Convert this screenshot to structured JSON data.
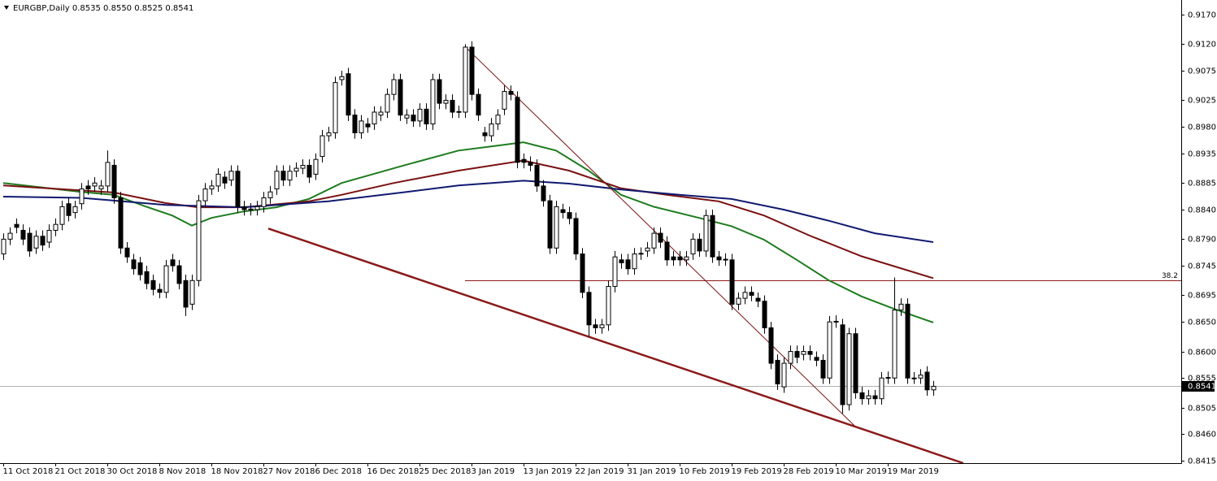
{
  "chart_data": {
    "type": "candlestick",
    "title": "EURGBP,Daily  0.8535 0.8550 0.8525 0.8541",
    "open": [
      0.8765,
      0.879,
      0.8815,
      0.8805,
      0.88,
      0.8775,
      0.8795,
      0.8785,
      0.8805,
      0.8815,
      0.885,
      0.8835,
      0.885,
      0.888,
      0.888,
      0.8875,
      0.888,
      0.8915,
      0.886,
      0.8775,
      0.8755,
      0.875,
      0.8735,
      0.872,
      0.8705,
      0.87,
      0.8755,
      0.8745,
      0.872,
      0.868,
      0.872,
      0.8855,
      0.8875,
      0.888,
      0.8895,
      0.889,
      0.8905,
      0.8845,
      0.884,
      0.884,
      0.8845,
      0.886,
      0.8875,
      0.8905,
      0.889,
      0.8905,
      0.891,
      0.8915,
      0.89,
      0.893,
      0.8965,
      0.897,
      0.906,
      0.907,
      0.9,
      0.897,
      0.8985,
      0.8985,
      0.9,
      0.9005,
      0.9035,
      0.906,
      0.8995,
      0.9,
      0.899,
      0.901,
      0.8985,
      0.906,
      0.902,
      0.9025,
      0.9005,
      0.9005,
      0.9115,
      0.9035,
      0.897,
      0.8965,
      0.8985,
      0.901,
      0.904,
      0.903,
      0.8925,
      0.892,
      0.8915,
      0.888,
      0.8855,
      0.8775,
      0.884,
      0.8835,
      0.8825,
      0.8765,
      0.87,
      0.8645,
      0.864,
      0.8645,
      0.871,
      0.8755,
      0.8755,
      0.874,
      0.8765,
      0.877,
      0.8775,
      0.88,
      0.8785,
      0.876,
      0.876,
      0.8755,
      0.8765,
      0.879,
      0.877,
      0.883,
      0.876,
      0.8755,
      0.8755,
      0.868,
      0.869,
      0.87,
      0.869,
      0.8685,
      0.864,
      0.8585,
      0.854,
      0.858,
      0.86,
      0.8595,
      0.86,
      0.859,
      0.8585,
      0.8555,
      0.865,
      0.8645,
      0.851,
      0.863,
      0.853,
      0.852,
      0.8525,
      0.852,
      0.8555,
      0.8555,
      0.867,
      0.868,
      0.8555,
      0.8555,
      0.8565,
      0.8535
    ],
    "high": [
      0.88,
      0.881,
      0.8825,
      0.8815,
      0.881,
      0.8805,
      0.8805,
      0.8815,
      0.8825,
      0.8855,
      0.886,
      0.8855,
      0.8885,
      0.889,
      0.8895,
      0.889,
      0.894,
      0.8925,
      0.887,
      0.8785,
      0.8765,
      0.876,
      0.8745,
      0.873,
      0.8715,
      0.8755,
      0.8765,
      0.8755,
      0.873,
      0.873,
      0.8865,
      0.8885,
      0.889,
      0.891,
      0.8905,
      0.8915,
      0.8915,
      0.8855,
      0.8851,
      0.8855,
      0.887,
      0.888,
      0.8915,
      0.8915,
      0.8915,
      0.892,
      0.8925,
      0.8925,
      0.8935,
      0.8975,
      0.898,
      0.9065,
      0.9075,
      0.908,
      0.901,
      0.9,
      0.8995,
      0.9015,
      0.9015,
      0.9045,
      0.907,
      0.907,
      0.901,
      0.901,
      0.902,
      0.902,
      0.907,
      0.907,
      0.9035,
      0.9035,
      0.9016,
      0.912,
      0.9125,
      0.9045,
      0.898,
      0.8995,
      0.901,
      0.905,
      0.905,
      0.904,
      0.8935,
      0.893,
      0.8925,
      0.889,
      0.8865,
      0.8855,
      0.885,
      0.8845,
      0.8835,
      0.8775,
      0.871,
      0.8655,
      0.8655,
      0.872,
      0.877,
      0.8765,
      0.8765,
      0.8775,
      0.8776,
      0.8785,
      0.881,
      0.881,
      0.8795,
      0.877,
      0.877,
      0.877,
      0.88,
      0.88,
      0.884,
      0.884,
      0.877,
      0.8766,
      0.8765,
      0.87,
      0.871,
      0.871,
      0.87,
      0.8695,
      0.865,
      0.8595,
      0.859,
      0.861,
      0.861,
      0.861,
      0.861,
      0.86,
      0.8595,
      0.866,
      0.8661,
      0.8655,
      0.864,
      0.864,
      0.854,
      0.8535,
      0.8535,
      0.8565,
      0.8566,
      0.8725,
      0.869,
      0.869,
      0.8565,
      0.857,
      0.8575,
      0.855
    ],
    "low": [
      0.8755,
      0.878,
      0.88,
      0.878,
      0.876,
      0.8765,
      0.877,
      0.8775,
      0.8795,
      0.8805,
      0.882,
      0.8825,
      0.884,
      0.8865,
      0.887,
      0.8865,
      0.887,
      0.885,
      0.8765,
      0.875,
      0.873,
      0.872,
      0.8705,
      0.8695,
      0.869,
      0.869,
      0.8735,
      0.8705,
      0.866,
      0.867,
      0.871,
      0.8845,
      0.8865,
      0.887,
      0.8875,
      0.888,
      0.8835,
      0.883,
      0.883,
      0.883,
      0.8835,
      0.885,
      0.8865,
      0.888,
      0.888,
      0.8895,
      0.89,
      0.8885,
      0.889,
      0.892,
      0.8955,
      0.896,
      0.905,
      0.899,
      0.896,
      0.896,
      0.897,
      0.8975,
      0.899,
      0.8995,
      0.9025,
      0.899,
      0.8985,
      0.898,
      0.898,
      0.8975,
      0.8975,
      0.901,
      0.901,
      0.8995,
      0.8995,
      0.8995,
      0.9025,
      0.899,
      0.8955,
      0.8955,
      0.8975,
      0.9,
      0.9025,
      0.891,
      0.891,
      0.8905,
      0.887,
      0.8845,
      0.8765,
      0.8765,
      0.8825,
      0.8815,
      0.8755,
      0.869,
      0.8625,
      0.863,
      0.863,
      0.8635,
      0.87,
      0.874,
      0.873,
      0.873,
      0.8755,
      0.876,
      0.8765,
      0.8775,
      0.8745,
      0.8745,
      0.8745,
      0.8745,
      0.8755,
      0.876,
      0.876,
      0.875,
      0.8745,
      0.8745,
      0.867,
      0.867,
      0.868,
      0.8685,
      0.8675,
      0.863,
      0.857,
      0.8535,
      0.853,
      0.857,
      0.858,
      0.8585,
      0.8585,
      0.8575,
      0.8545,
      0.8545,
      0.864,
      0.8495,
      0.85,
      0.852,
      0.851,
      0.851,
      0.851,
      0.851,
      0.8545,
      0.8545,
      0.866,
      0.8545,
      0.8545,
      0.8545,
      0.8525,
      0.8525
    ],
    "close": [
      0.879,
      0.88,
      0.881,
      0.879,
      0.877,
      0.8795,
      0.878,
      0.8805,
      0.8815,
      0.8845,
      0.883,
      0.8845,
      0.8875,
      0.8875,
      0.8885,
      0.888,
      0.892,
      0.886,
      0.8775,
      0.876,
      0.874,
      0.873,
      0.8715,
      0.8705,
      0.87,
      0.8745,
      0.8745,
      0.8715,
      0.8675,
      0.872,
      0.8855,
      0.8875,
      0.888,
      0.89,
      0.8885,
      0.8905,
      0.8845,
      0.884,
      0.8841,
      0.8845,
      0.886,
      0.887,
      0.8905,
      0.889,
      0.8905,
      0.891,
      0.8915,
      0.8895,
      0.8925,
      0.8965,
      0.897,
      0.9055,
      0.9065,
      0.9,
      0.897,
      0.899,
      0.898,
      0.9005,
      0.9005,
      0.9035,
      0.906,
      0.9,
      0.9,
      0.899,
      0.901,
      0.8985,
      0.906,
      0.902,
      0.9025,
      0.9005,
      0.9006,
      0.9115,
      0.9035,
      0.9,
      0.8965,
      0.8985,
      0.9,
      0.904,
      0.9035,
      0.892,
      0.892,
      0.8915,
      0.888,
      0.8855,
      0.8775,
      0.8845,
      0.8835,
      0.8825,
      0.8765,
      0.87,
      0.8645,
      0.864,
      0.8645,
      0.871,
      0.876,
      0.875,
      0.874,
      0.8765,
      0.8766,
      0.8775,
      0.88,
      0.8785,
      0.8755,
      0.8755,
      0.8755,
      0.876,
      0.879,
      0.877,
      0.883,
      0.876,
      0.8755,
      0.8756,
      0.868,
      0.869,
      0.87,
      0.8695,
      0.8685,
      0.864,
      0.858,
      0.8545,
      0.858,
      0.86,
      0.859,
      0.86,
      0.8595,
      0.8585,
      0.8555,
      0.865,
      0.8651,
      0.851,
      0.863,
      0.853,
      0.852,
      0.8525,
      0.852,
      0.8555,
      0.8556,
      0.867,
      0.868,
      0.8555,
      0.8555,
      0.856,
      0.8535,
      0.8541
    ],
    "up_color": "#ffffff",
    "down_color": "#000000",
    "series": [
      {
        "color": "#1e7b1e",
        "x": [
          0,
          12,
          17,
          22,
          26,
          29,
          32,
          37,
          42,
          47,
          52,
          61,
          70,
          75,
          80,
          85,
          90,
          95,
          100,
          107,
          112,
          117,
          122,
          127,
          132,
          137,
          143
        ],
        "values": [
          0.8885,
          0.887,
          0.8865,
          0.8845,
          0.883,
          0.8813,
          0.8826,
          0.8837,
          0.8844,
          0.8858,
          0.8885,
          0.8913,
          0.894,
          0.8947,
          0.8954,
          0.894,
          0.8906,
          0.8865,
          0.8845,
          0.8826,
          0.8812,
          0.8789,
          0.8755,
          0.872,
          0.8693,
          0.8672,
          0.8649
        ]
      },
      {
        "color": "#7a1010",
        "x": [
          0,
          17,
          25,
          30,
          37,
          47,
          52,
          60,
          70,
          80,
          87,
          95,
          102,
          110,
          117,
          124,
          132,
          143
        ],
        "values": [
          0.8881,
          0.8869,
          0.8851,
          0.8844,
          0.8844,
          0.8854,
          0.8865,
          0.8885,
          0.8906,
          0.8923,
          0.8906,
          0.8876,
          0.8865,
          0.8854,
          0.883,
          0.8796,
          0.8761,
          0.8724
        ]
      },
      {
        "color": "#101a70",
        "x": [
          0,
          12,
          25,
          37,
          50,
          62,
          70,
          80,
          87,
          95,
          104,
          112,
          120,
          127,
          134,
          143
        ],
        "values": [
          0.8862,
          0.886,
          0.8848,
          0.8844,
          0.8854,
          0.887,
          0.8881,
          0.8889,
          0.8884,
          0.8874,
          0.8865,
          0.8858,
          0.884,
          0.8821,
          0.88,
          0.8785
        ]
      }
    ],
    "trendlines": [
      {
        "color": "#7a1010",
        "width": 1,
        "x": [
          71,
          131
        ],
        "values": [
          0.9116,
          0.8473
        ]
      },
      {
        "color": "#8b1a1a",
        "width": 2.5,
        "x": [
          40.75,
          147.6
        ],
        "values": [
          0.8808,
          0.8411
        ]
      }
    ],
    "fib_level": {
      "x_start": 71,
      "value": 0.872,
      "label": "38.2",
      "color": "#8b1a1a"
    },
    "last_price": 0.8541,
    "xlim": [
      -0.5,
      181.125
    ],
    "ylim": [
      0.8411,
      0.9192
    ],
    "xticks": [
      {
        "value": 0,
        "label": "11 Oct 2018"
      },
      {
        "value": 8,
        "label": "21 Oct 2018"
      },
      {
        "value": 16,
        "label": "30 Oct 2018"
      },
      {
        "value": 24,
        "label": "8 Nov 2018"
      },
      {
        "value": 32,
        "label": "18 Nov 2018"
      },
      {
        "value": 40,
        "label": "27 Nov 2018"
      },
      {
        "value": 48,
        "label": "6 Dec 2018"
      },
      {
        "value": 56,
        "label": "16 Dec 2018"
      },
      {
        "value": 64,
        "label": "25 Dec 2018"
      },
      {
        "value": 72,
        "label": "3 Jan 2019"
      },
      {
        "value": 80,
        "label": "13 Jan 2019"
      },
      {
        "value": 88,
        "label": "22 Jan 2019"
      },
      {
        "value": 96,
        "label": "31 Jan 2019"
      },
      {
        "value": 104,
        "label": "10 Feb 2019"
      },
      {
        "value": 112,
        "label": "19 Feb 2019"
      },
      {
        "value": 120,
        "label": "28 Feb 2019"
      },
      {
        "value": 128,
        "label": "10 Mar 2019"
      },
      {
        "value": 136,
        "label": "19 Mar 2019"
      }
    ],
    "yticks": [
      {
        "value": 0.917,
        "label": "0.9170"
      },
      {
        "value": 0.912,
        "label": "0.9120"
      },
      0.9075,
      0.9025,
      {
        "value": 0.898,
        "label": "0.8980"
      },
      0.8935,
      0.8885,
      {
        "value": 0.884,
        "label": "0.8840"
      },
      {
        "value": 0.879,
        "label": "0.8790"
      },
      0.8745,
      0.8695,
      {
        "value": 0.865,
        "label": "0.8650"
      },
      {
        "value": 0.86,
        "label": "0.8600"
      },
      0.8555,
      0.8505,
      {
        "value": 0.846,
        "label": "0.8460"
      },
      0.8415
    ]
  }
}
